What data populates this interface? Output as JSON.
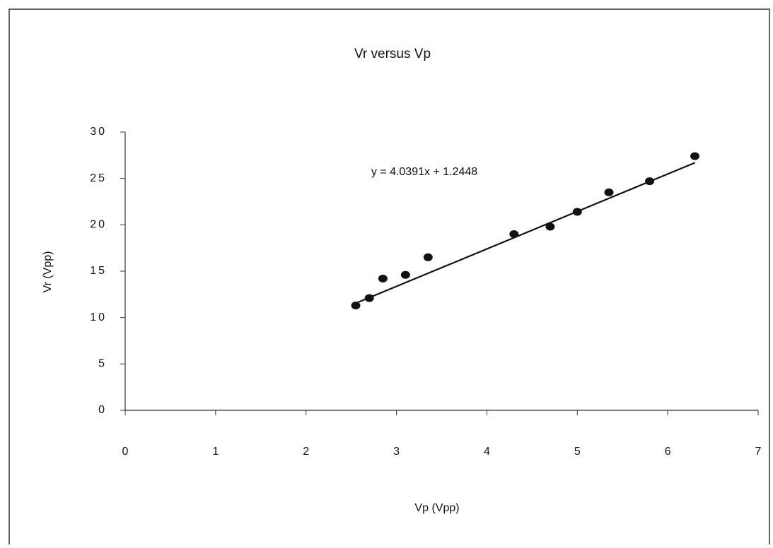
{
  "chart_data": {
    "type": "scatter",
    "title": "Vr versus Vp",
    "x_label": "Vp (Vpp)",
    "y_label": "Vr (Vpp)",
    "x": [
      2.55,
      2.7,
      2.85,
      3.1,
      3.35,
      4.3,
      4.7,
      5.0,
      5.35,
      5.8,
      6.3
    ],
    "values": [
      11.3,
      12.1,
      14.2,
      14.6,
      16.5,
      19.0,
      19.8,
      21.4,
      23.5,
      24.7,
      27.4
    ],
    "color": "#111111",
    "trendline": {
      "slope": 4.0391,
      "intercept": 1.2448,
      "label": "y = 4.0391x + 1.2448"
    },
    "xlim": [
      0,
      7
    ],
    "xticks": [
      0,
      1,
      2,
      3,
      4,
      5,
      6,
      7
    ],
    "ylim": [
      0,
      30
    ],
    "yticks": [
      0,
      5,
      10,
      15,
      20,
      25,
      30
    ]
  }
}
